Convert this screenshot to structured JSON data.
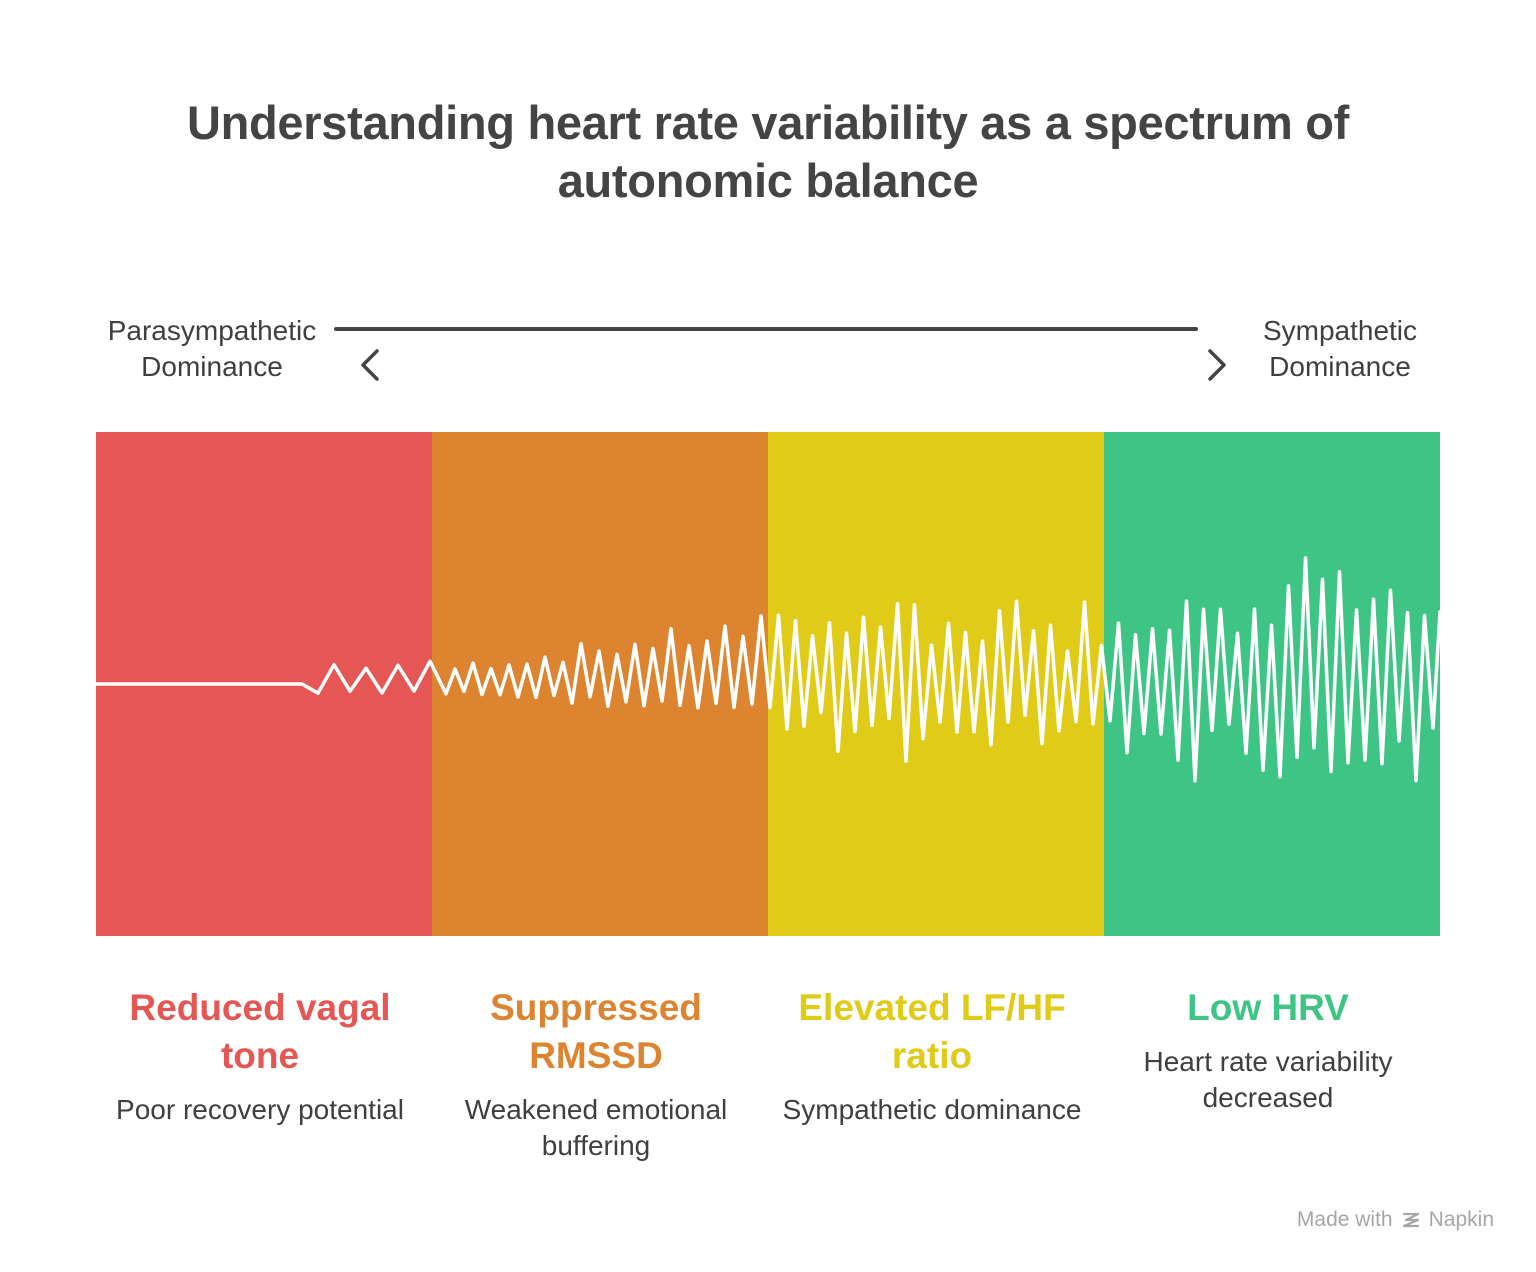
{
  "title": {
    "line1": "Understanding heart rate variability as a spectrum of",
    "line2": "autonomic balance"
  },
  "axis": {
    "left_line1": "Parasympathetic",
    "left_line2": "Dominance",
    "right_line1": "Sympathetic",
    "right_line2": "Dominance"
  },
  "stages": [
    {
      "title": "Reduced vagal tone",
      "description": "Poor recovery potential",
      "color": "#e55754"
    },
    {
      "title": "Suppressed RMSSD",
      "description": "Weakened emotional buffering",
      "color": "#dd8431"
    },
    {
      "title": "Elevated LF/HF ratio",
      "description": "Sympathetic dominance",
      "color": "#dfcb18"
    },
    {
      "title": "Low HRV",
      "description": "Heart rate variability decreased",
      "color": "#3ec585"
    }
  ],
  "footer": {
    "made_with": "Made with",
    "brand": "Napkin"
  }
}
